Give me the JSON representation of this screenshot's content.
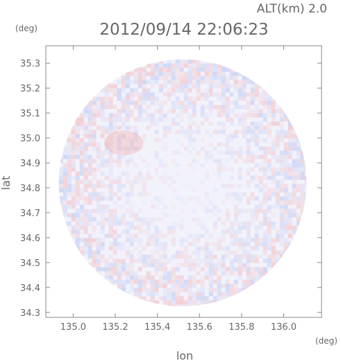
{
  "header": {
    "altitude_label": "ALT(km) 2.0",
    "timestamp": "2012/09/14 22:06:23"
  },
  "chart_data": {
    "type": "heatmap",
    "title": "2012/09/14 22:06:23",
    "xlabel": "lon",
    "ylabel": "lat",
    "x_unit": "(deg)",
    "y_unit": "(deg)",
    "xlim": [
      134.87,
      136.18
    ],
    "ylim": [
      34.28,
      35.37
    ],
    "x_ticks": [
      135.0,
      135.2,
      135.4,
      135.6,
      135.8,
      136.0
    ],
    "y_ticks": [
      34.3,
      34.4,
      34.5,
      34.6,
      34.7,
      34.8,
      34.9,
      35.0,
      35.1,
      35.2,
      35.3
    ],
    "grid": false,
    "radar_center": [
      135.52,
      34.82
    ],
    "radar_radius_deg_lon": 0.595,
    "radar_radius_deg_lat": 0.49,
    "colors": {
      "positive": "#f2a8a8",
      "negative": "#a8b8f2",
      "neutral": "#f2f2fb",
      "frame": "#888888"
    }
  }
}
